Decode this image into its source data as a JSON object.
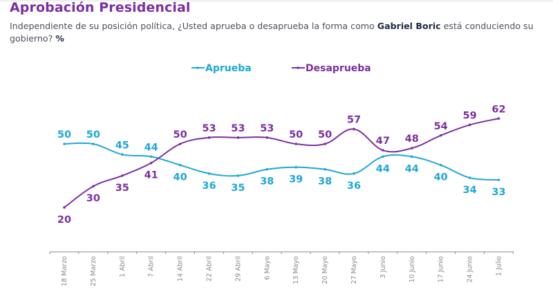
{
  "header": {
    "title": "Aprobación Presidencial",
    "subtitle_pre": "Independiente de su posición política, ¿Usted aprueba o desaprueba la forma como ",
    "subtitle_bold": "Gabriel Boric",
    "subtitle_post": " está conduciendo su gobierno? ",
    "subtitle_unit": "%"
  },
  "colors": {
    "title": "#7b2fa0",
    "aprueba": "#1ea7d7",
    "desaprueba": "#7b2fa0",
    "axis": "#8a8a8a"
  },
  "chart_data": {
    "type": "line",
    "title": "Aprobación Presidencial",
    "xlabel": "",
    "ylabel": "%",
    "categories": [
      "18 Marzo",
      "25 Marzo",
      "1 Abril",
      "7 Abril",
      "14 Abril",
      "22 Abril",
      "29 Abril",
      "6 Mayo",
      "13 Mayo",
      "20 Mayo",
      "27 Mayo",
      "3 Junio",
      "10 Junio",
      "17 Junio",
      "24 Junio",
      "1 Julio"
    ],
    "series": [
      {
        "name": "Aprueba",
        "color": "#1ea7d7",
        "values": [
          50,
          50,
          45,
          44,
          40,
          36,
          35,
          38,
          39,
          38,
          36,
          44,
          44,
          40,
          34,
          33
        ]
      },
      {
        "name": "Desaprueba",
        "color": "#7b2fa0",
        "values": [
          20,
          30,
          35,
          41,
          50,
          53,
          53,
          53,
          50,
          50,
          57,
          47,
          48,
          54,
          59,
          62
        ]
      }
    ],
    "legend": {
      "position": "top-center",
      "entries": [
        "Aprueba",
        "Desaprueba"
      ]
    },
    "grid": false,
    "smooth": true,
    "data_labels": true
  }
}
